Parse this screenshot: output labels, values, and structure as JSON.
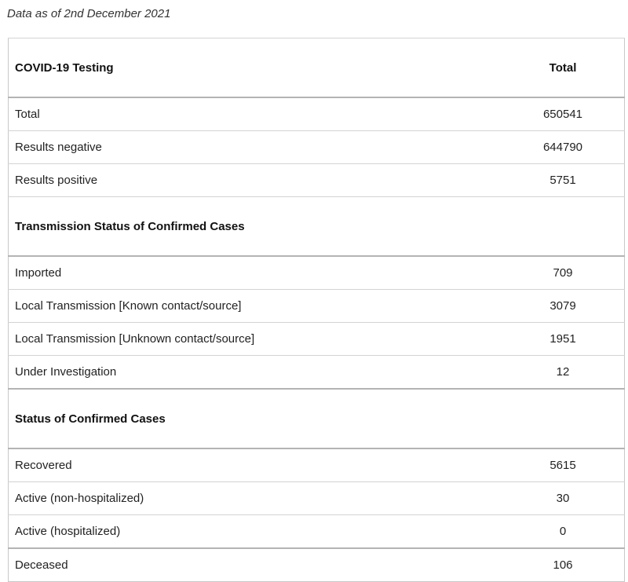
{
  "as_of": "Data as of 2nd December 2021",
  "table": {
    "header": {
      "label": "COVID-19 Testing",
      "total": "Total"
    },
    "testing": [
      {
        "label": "Total",
        "value": "650541"
      },
      {
        "label": "Results negative",
        "value": "644790"
      },
      {
        "label": "Results positive",
        "value": "5751"
      }
    ],
    "transmission": {
      "title": "Transmission Status of Confirmed Cases",
      "rows": [
        {
          "label": "Imported",
          "value": "709"
        },
        {
          "label": "Local Transmission [Known contact/source]",
          "value": "3079"
        },
        {
          "label": "Local Transmission [Unknown contact/source]",
          "value": "1951"
        },
        {
          "label": "Under Investigation",
          "value": "12"
        }
      ]
    },
    "status": {
      "title": "Status of Confirmed Cases",
      "rows": [
        {
          "label": "Recovered",
          "value": "5615"
        },
        {
          "label": "Active (non-hospitalized)",
          "value": "30"
        },
        {
          "label": "Active (hospitalized)",
          "value": "0"
        },
        {
          "label": "Deceased",
          "value": "106"
        }
      ]
    }
  }
}
